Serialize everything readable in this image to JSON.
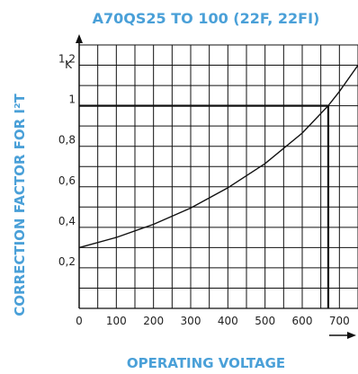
{
  "colors": {
    "label": "#4aa0d8",
    "line": "#111111"
  },
  "chart_data": {
    "type": "line",
    "title": "A70QS25 TO 100 (22F, 22FI)",
    "xlabel": "OPERATING VOLTAGE",
    "ylabel": "CORRECTION FACTOR FOR I²T",
    "y_axis_symbol": "K",
    "xlim": [
      0,
      750
    ],
    "ylim": [
      0,
      1.3
    ],
    "x_ticks": [
      0,
      100,
      200,
      300,
      400,
      500,
      600,
      700
    ],
    "x_tick_labels": [
      "0",
      "100",
      "200",
      "300",
      "400",
      "500",
      "600",
      "700"
    ],
    "y_ticks": [
      0.2,
      0.4,
      0.6,
      0.8,
      1,
      1.2
    ],
    "y_tick_labels": [
      "0,2",
      "0,4",
      "0,6",
      "0,8",
      "1",
      "1,2"
    ],
    "grid": true,
    "series": [
      {
        "x": [
          0,
          100,
          200,
          300,
          400,
          500,
          600,
          670,
          700,
          750
        ],
        "y": [
          0.3,
          0.35,
          0.415,
          0.495,
          0.595,
          0.715,
          0.865,
          1.0,
          1.07,
          1.2
        ]
      }
    ],
    "reference": {
      "x": 670,
      "y": 1.0
    }
  }
}
